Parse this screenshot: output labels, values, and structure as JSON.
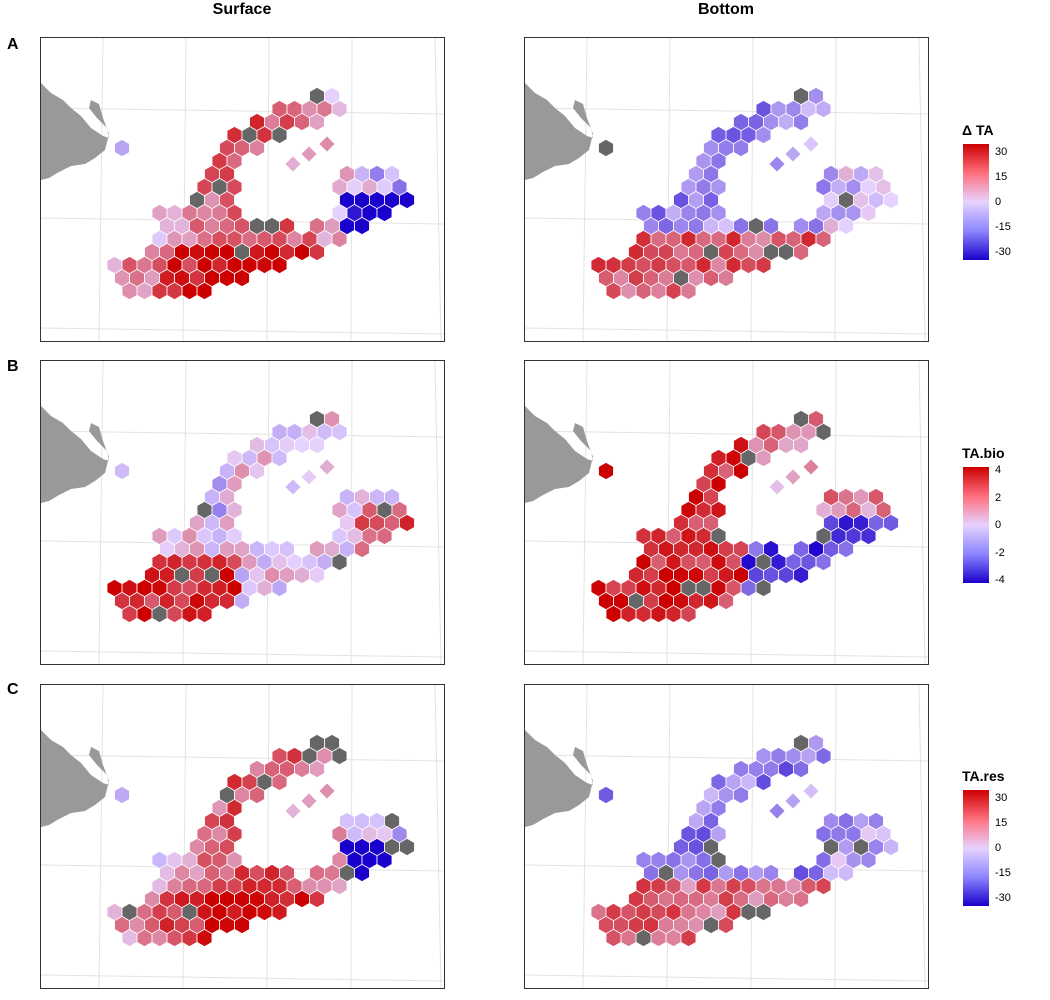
{
  "columns": {
    "surface": "Surface",
    "bottom": "Bottom"
  },
  "rows": [
    {
      "tag": "A",
      "legend_title": "Δ TA",
      "ticks": [
        "30",
        "15",
        "0",
        "-15",
        "-30"
      ]
    },
    {
      "tag": "B",
      "legend_title": "TA.bio",
      "ticks": [
        "4",
        "2",
        "0",
        "-2",
        "-4"
      ]
    },
    {
      "tag": "C",
      "legend_title": "TA.res",
      "ticks": [
        "30",
        "15",
        "0",
        "-15",
        "-30"
      ]
    }
  ],
  "colors": {
    "high": "#cc0000",
    "mid": "#e6d2ff",
    "low": "#1a00cc",
    "missing": "#666666",
    "land": "#999999"
  }
}
